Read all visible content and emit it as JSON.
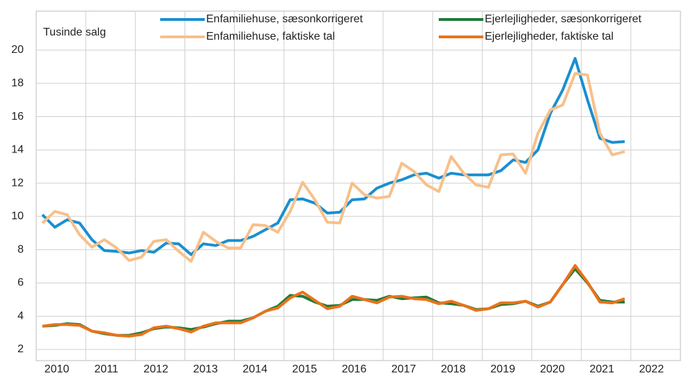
{
  "chart_data": {
    "type": "line",
    "ylabel": "Tusinde salg",
    "x": [
      2010.125,
      2010.375,
      2010.625,
      2010.875,
      2011.125,
      2011.375,
      2011.625,
      2011.875,
      2012.125,
      2012.375,
      2012.625,
      2012.875,
      2013.125,
      2013.375,
      2013.625,
      2013.875,
      2014.125,
      2014.375,
      2014.625,
      2014.875,
      2015.125,
      2015.375,
      2015.625,
      2015.875,
      2016.125,
      2016.375,
      2016.625,
      2016.875,
      2017.125,
      2017.375,
      2017.625,
      2017.875,
      2018.125,
      2018.375,
      2018.625,
      2018.875,
      2019.125,
      2019.375,
      2019.625,
      2019.875,
      2020.125,
      2020.375,
      2020.625,
      2020.875,
      2021.125,
      2021.375,
      2021.625,
      2021.875
    ],
    "series": [
      {
        "name": "Enfamiliehuse, sæsonkorrigeret",
        "color": "#1a8fd0",
        "values": [
          10.1,
          9.35,
          9.8,
          9.6,
          8.6,
          7.95,
          7.9,
          7.8,
          7.95,
          7.85,
          8.4,
          8.35,
          7.7,
          8.35,
          8.25,
          8.55,
          8.55,
          8.8,
          9.2,
          9.6,
          11.0,
          11.05,
          10.8,
          10.2,
          10.25,
          11.0,
          11.05,
          11.7,
          12.0,
          12.2,
          12.5,
          12.6,
          12.3,
          12.6,
          12.5,
          12.5,
          12.5,
          12.75,
          13.4,
          13.25,
          14.0,
          16.2,
          17.6,
          19.5,
          17.0,
          14.7,
          14.45,
          14.5
        ]
      },
      {
        "name": "Ejerlejligheder, sæsonkorrigeret",
        "color": "#1e7a3a",
        "values": [
          3.4,
          3.45,
          3.55,
          3.5,
          3.1,
          2.95,
          2.85,
          2.85,
          3.0,
          3.25,
          3.35,
          3.3,
          3.2,
          3.35,
          3.55,
          3.7,
          3.7,
          3.9,
          4.3,
          4.6,
          5.25,
          5.2,
          4.85,
          4.6,
          4.65,
          5.0,
          5.0,
          4.95,
          5.2,
          5.05,
          5.1,
          5.15,
          4.8,
          4.75,
          4.65,
          4.4,
          4.45,
          4.7,
          4.75,
          4.9,
          4.6,
          4.85,
          5.9,
          6.85,
          6.0,
          4.95,
          4.85,
          4.85
        ]
      },
      {
        "name": "Enfamiliehuse, faktiske tal",
        "color": "#f7c08a",
        "values": [
          9.6,
          10.3,
          10.1,
          8.9,
          8.15,
          8.6,
          8.1,
          7.35,
          7.55,
          8.5,
          8.6,
          7.9,
          7.3,
          9.05,
          8.5,
          8.1,
          8.1,
          9.5,
          9.45,
          9.05,
          10.3,
          12.05,
          11.0,
          9.65,
          9.6,
          12.0,
          11.3,
          11.1,
          11.2,
          13.2,
          12.7,
          11.9,
          11.5,
          13.6,
          12.6,
          11.9,
          11.75,
          13.7,
          13.75,
          12.6,
          15.0,
          16.4,
          16.7,
          18.6,
          18.5,
          15.0,
          13.7,
          13.9
        ]
      },
      {
        "name": "Ejerlejligheder, faktiske tal",
        "color": "#e8731a",
        "values": [
          3.4,
          3.5,
          3.5,
          3.45,
          3.1,
          3.0,
          2.85,
          2.8,
          2.9,
          3.3,
          3.4,
          3.25,
          3.05,
          3.4,
          3.6,
          3.6,
          3.6,
          3.9,
          4.3,
          4.5,
          5.1,
          5.45,
          4.95,
          4.45,
          4.6,
          5.2,
          5.0,
          4.8,
          5.15,
          5.2,
          5.05,
          5.0,
          4.75,
          4.9,
          4.65,
          4.35,
          4.45,
          4.8,
          4.8,
          4.9,
          4.55,
          4.85,
          5.9,
          7.05,
          6.05,
          4.85,
          4.8,
          5.05
        ]
      }
    ],
    "xlim": [
      2010,
      2023
    ],
    "xticks": [
      2010,
      2011,
      2012,
      2013,
      2014,
      2015,
      2016,
      2017,
      2018,
      2019,
      2020,
      2021,
      2022
    ],
    "ylim": [
      2,
      20
    ],
    "yticks": [
      2,
      4,
      6,
      8,
      10,
      12,
      14,
      16,
      18,
      20
    ],
    "grid": true
  }
}
